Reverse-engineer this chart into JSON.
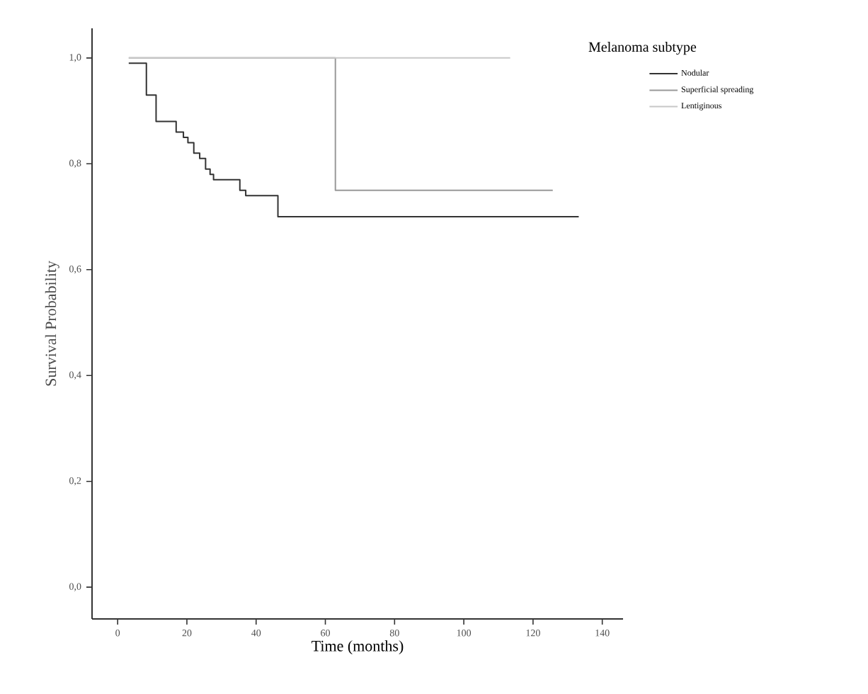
{
  "chart_data": {
    "type": "step",
    "xlabel": "Time (months)",
    "ylabel": "Survival Probability",
    "legend_title": "Melanoma subtype",
    "xlim": [
      -7.4,
      146
    ],
    "xticks": [
      0,
      20,
      40,
      60,
      80,
      100,
      120,
      140
    ],
    "ylim": [
      -0.06,
      1.056
    ],
    "yticks": [
      {
        "value": 0,
        "label": "0,0"
      },
      {
        "value": 0.2,
        "label": "0,2"
      },
      {
        "value": 0.4,
        "label": "0,4"
      },
      {
        "value": 0.6,
        "label": "0,6"
      },
      {
        "value": 0.8,
        "label": "0,8"
      },
      {
        "value": 1,
        "label": "1,0"
      }
    ],
    "series": [
      {
        "name": "Nodular",
        "color": "#333333",
        "x": [
          3.2,
          8.3,
          11.1,
          16.9,
          19,
          20.3,
          22,
          23.7,
          25.4,
          26.7,
          27.7,
          35.3,
          37,
          46.3,
          133.2
        ],
        "values": [
          0.99,
          0.93,
          0.88,
          0.86,
          0.85,
          0.84,
          0.82,
          0.81,
          0.79,
          0.78,
          0.77,
          0.75,
          0.74,
          0.7,
          0.7
        ]
      },
      {
        "name": "Superficial spreading",
        "color": "#999999",
        "x": [
          3.2,
          62.9,
          125.7
        ],
        "values": [
          1.0,
          0.75,
          0.75
        ]
      },
      {
        "name": "Lentiginous",
        "color": "#c8c8c8",
        "x": [
          3.2,
          113.4
        ],
        "values": [
          1.0,
          1.0
        ]
      }
    ],
    "legend": "right",
    "grid": false,
    "marker": "none",
    "line_style": "solid"
  }
}
